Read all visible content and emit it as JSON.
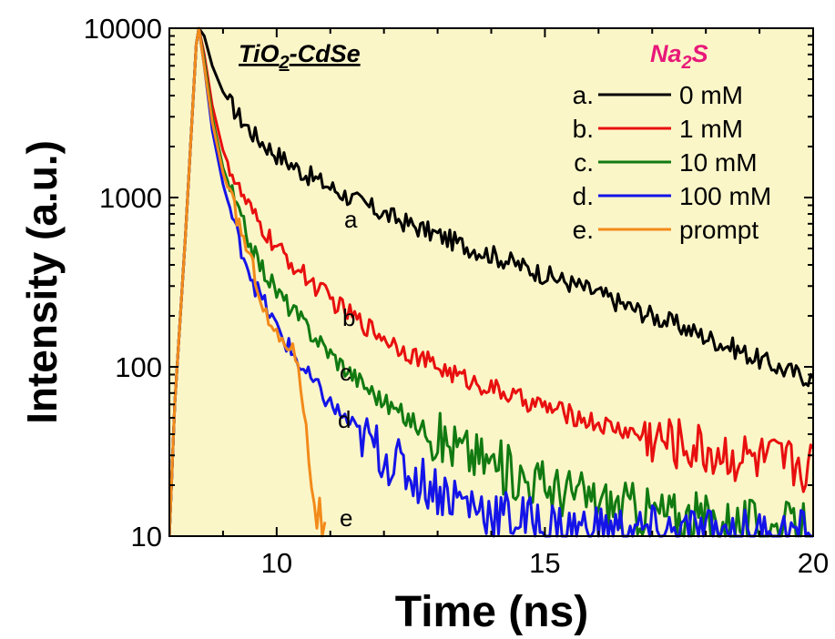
{
  "chart_data": {
    "type": "line",
    "title": "",
    "xlabel": "Time (ns)",
    "ylabel": "Intensity (a.u.)",
    "xlim": [
      8,
      20
    ],
    "ylim": [
      10,
      10000
    ],
    "yscale": "log",
    "xticks": [
      10,
      15,
      20
    ],
    "yticks": [
      10,
      100,
      1000,
      10000
    ],
    "xtick_labels": [
      "10",
      "15",
      "20"
    ],
    "ytick_labels": [
      "10",
      "100",
      "1000",
      "10000"
    ],
    "grid": false,
    "background_color": "#fbf6c8",
    "sample_label": {
      "prefix": "TiO",
      "sub": "2",
      "suffix": "-CdSe"
    },
    "legend_title": {
      "prefix": "Na",
      "sub": "2",
      "suffix": "S",
      "color": "#e8187a"
    },
    "legend_position": "top-right",
    "series": [
      {
        "key": "a",
        "legend_marker": "a.",
        "name": "0 mM",
        "color": "#000000",
        "points": [
          [
            8.0,
            10
          ],
          [
            8.1,
            60
          ],
          [
            8.3,
            600
          ],
          [
            8.5,
            8000
          ],
          [
            8.55,
            10000
          ],
          [
            8.65,
            9000
          ],
          [
            8.8,
            6000
          ],
          [
            9.0,
            4200
          ],
          [
            9.3,
            3000
          ],
          [
            9.6,
            2300
          ],
          [
            10.0,
            1800
          ],
          [
            10.5,
            1400
          ],
          [
            11.0,
            1150
          ],
          [
            11.5,
            950
          ],
          [
            12.0,
            800
          ],
          [
            12.5,
            690
          ],
          [
            13.0,
            600
          ],
          [
            13.5,
            520
          ],
          [
            14.0,
            460
          ],
          [
            14.5,
            400
          ],
          [
            15.0,
            350
          ],
          [
            15.5,
            310
          ],
          [
            16.0,
            270
          ],
          [
            16.5,
            230
          ],
          [
            17.0,
            200
          ],
          [
            17.5,
            175
          ],
          [
            18.0,
            150
          ],
          [
            18.5,
            130
          ],
          [
            19.0,
            110
          ],
          [
            19.5,
            95
          ],
          [
            20.0,
            85
          ]
        ]
      },
      {
        "key": "b",
        "legend_marker": "b.",
        "name": "1 mM",
        "color": "#e8100f",
        "points": [
          [
            8.0,
            10
          ],
          [
            8.1,
            60
          ],
          [
            8.3,
            600
          ],
          [
            8.5,
            8000
          ],
          [
            8.55,
            10000
          ],
          [
            8.65,
            7000
          ],
          [
            8.8,
            3500
          ],
          [
            9.0,
            1900
          ],
          [
            9.3,
            1100
          ],
          [
            9.6,
            750
          ],
          [
            10.0,
            500
          ],
          [
            10.5,
            350
          ],
          [
            11.0,
            250
          ],
          [
            11.5,
            190
          ],
          [
            12.0,
            150
          ],
          [
            12.5,
            120
          ],
          [
            13.0,
            100
          ],
          [
            13.5,
            85
          ],
          [
            14.0,
            75
          ],
          [
            14.5,
            65
          ],
          [
            15.0,
            58
          ],
          [
            15.5,
            52
          ],
          [
            16.0,
            46
          ],
          [
            16.5,
            42
          ],
          [
            17.0,
            38
          ],
          [
            17.5,
            35
          ],
          [
            18.0,
            32
          ],
          [
            18.5,
            30
          ],
          [
            19.0,
            28
          ],
          [
            19.5,
            27
          ],
          [
            20.0,
            26
          ]
        ]
      },
      {
        "key": "c",
        "legend_marker": "c.",
        "name": "10 mM",
        "color": "#117a11",
        "points": [
          [
            8.0,
            10
          ],
          [
            8.1,
            60
          ],
          [
            8.3,
            600
          ],
          [
            8.5,
            8000
          ],
          [
            8.55,
            10000
          ],
          [
            8.65,
            6500
          ],
          [
            8.8,
            3000
          ],
          [
            9.0,
            1500
          ],
          [
            9.3,
            800
          ],
          [
            9.6,
            450
          ],
          [
            10.0,
            280
          ],
          [
            10.5,
            180
          ],
          [
            11.0,
            120
          ],
          [
            11.5,
            85
          ],
          [
            12.0,
            62
          ],
          [
            12.5,
            48
          ],
          [
            13.0,
            38
          ],
          [
            13.5,
            32
          ],
          [
            14.0,
            27
          ],
          [
            14.5,
            23
          ],
          [
            15.0,
            20
          ],
          [
            15.5,
            18
          ],
          [
            16.0,
            16
          ],
          [
            16.5,
            15
          ],
          [
            17.0,
            14
          ],
          [
            17.5,
            13
          ],
          [
            18.0,
            12.5
          ],
          [
            18.5,
            12
          ],
          [
            19.0,
            11.5
          ],
          [
            19.5,
            11
          ],
          [
            20.0,
            11
          ]
        ]
      },
      {
        "key": "d",
        "legend_marker": "d.",
        "name": "100 mM",
        "color": "#1414e8",
        "points": [
          [
            8.0,
            10
          ],
          [
            8.1,
            60
          ],
          [
            8.3,
            600
          ],
          [
            8.5,
            8000
          ],
          [
            8.55,
            10000
          ],
          [
            8.65,
            6000
          ],
          [
            8.8,
            2500
          ],
          [
            9.0,
            1200
          ],
          [
            9.3,
            550
          ],
          [
            9.6,
            300
          ],
          [
            10.0,
            170
          ],
          [
            10.5,
            95
          ],
          [
            11.0,
            60
          ],
          [
            11.5,
            42
          ],
          [
            12.0,
            30
          ],
          [
            12.5,
            23
          ],
          [
            13.0,
            19
          ],
          [
            13.5,
            16
          ],
          [
            14.0,
            14
          ],
          [
            14.5,
            12.5
          ],
          [
            15.0,
            11.5
          ],
          [
            15.5,
            11
          ],
          [
            16.0,
            10.8
          ],
          [
            16.5,
            10.6
          ],
          [
            17.0,
            10.5
          ],
          [
            17.5,
            10.4
          ],
          [
            18.0,
            10.3
          ],
          [
            18.5,
            10.2
          ],
          [
            19.0,
            10.1
          ],
          [
            19.5,
            10.05
          ],
          [
            20.0,
            10
          ]
        ]
      },
      {
        "key": "e",
        "legend_marker": "e.",
        "name": "prompt",
        "color": "#f28a1a",
        "points": [
          [
            8.0,
            10
          ],
          [
            8.1,
            60
          ],
          [
            8.3,
            600
          ],
          [
            8.5,
            8000
          ],
          [
            8.55,
            10000
          ],
          [
            8.65,
            6000
          ],
          [
            8.8,
            2800
          ],
          [
            9.0,
            1400
          ],
          [
            9.3,
            700
          ],
          [
            9.6,
            350
          ],
          [
            9.8,
            200
          ],
          [
            10.0,
            150
          ],
          [
            10.2,
            140
          ],
          [
            10.4,
            110
          ],
          [
            10.5,
            60
          ],
          [
            10.6,
            30
          ],
          [
            10.7,
            18
          ],
          [
            10.8,
            12
          ],
          [
            10.9,
            10
          ]
        ]
      }
    ]
  }
}
